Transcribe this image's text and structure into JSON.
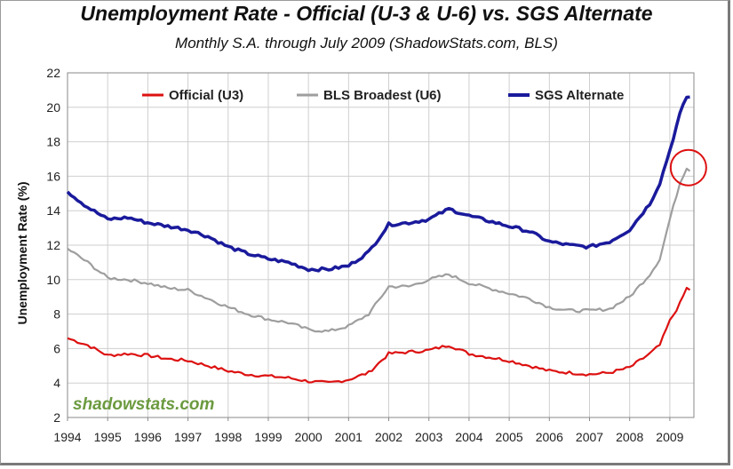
{
  "chart_data": {
    "type": "line",
    "title": "Unemployment Rate - Official (U-3 & U-6) vs. SGS Alternate",
    "subtitle": "Monthly S.A. through July 2009 (ShadowStats.com, BLS)",
    "ylabel": "Unemployment Rate (%)",
    "xlabel": "",
    "xlim": [
      1994,
      2009.6
    ],
    "ylim": [
      2,
      22
    ],
    "yticks": [
      "2",
      "4",
      "6",
      "8",
      "10",
      "12",
      "14",
      "16",
      "18",
      "20",
      "22"
    ],
    "xticks": [
      "1994",
      "1995",
      "1996",
      "1997",
      "1998",
      "1999",
      "2000",
      "2001",
      "2002",
      "2003",
      "2004",
      "2005",
      "2006",
      "2007",
      "2008",
      "2009"
    ],
    "grid": true,
    "legend_position": "top",
    "watermark": "shadowstats.com",
    "annotation": "red circle around latest U6 value",
    "series": [
      {
        "name": "Official (U3)",
        "color": "#dd1111",
        "points": [
          [
            1994.0,
            6.6
          ],
          [
            1994.5,
            6.2
          ],
          [
            1995.0,
            5.6
          ],
          [
            1995.5,
            5.7
          ],
          [
            1996.0,
            5.6
          ],
          [
            1996.5,
            5.4
          ],
          [
            1997.0,
            5.3
          ],
          [
            1997.5,
            5.0
          ],
          [
            1998.0,
            4.7
          ],
          [
            1998.5,
            4.5
          ],
          [
            1999.0,
            4.4
          ],
          [
            1999.5,
            4.3
          ],
          [
            2000.0,
            4.1
          ],
          [
            2000.5,
            4.0
          ],
          [
            2001.0,
            4.2
          ],
          [
            2001.5,
            4.6
          ],
          [
            2002.0,
            5.7
          ],
          [
            2002.5,
            5.8
          ],
          [
            2003.0,
            5.9
          ],
          [
            2003.5,
            6.2
          ],
          [
            2004.0,
            5.7
          ],
          [
            2004.5,
            5.5
          ],
          [
            2005.0,
            5.3
          ],
          [
            2005.5,
            5.0
          ],
          [
            2006.0,
            4.7
          ],
          [
            2006.5,
            4.6
          ],
          [
            2007.0,
            4.5
          ],
          [
            2007.5,
            4.6
          ],
          [
            2008.0,
            4.9
          ],
          [
            2008.5,
            5.7
          ],
          [
            2008.75,
            6.2
          ],
          [
            2009.0,
            7.6
          ],
          [
            2009.25,
            8.6
          ],
          [
            2009.42,
            9.5
          ],
          [
            2009.5,
            9.4
          ]
        ]
      },
      {
        "name": "BLS Broadest (U6)",
        "color": "#9e9e9e",
        "points": [
          [
            1994.0,
            11.8
          ],
          [
            1994.5,
            11.0
          ],
          [
            1995.0,
            10.1
          ],
          [
            1995.5,
            10.0
          ],
          [
            1996.0,
            9.8
          ],
          [
            1996.5,
            9.5
          ],
          [
            1997.0,
            9.4
          ],
          [
            1997.5,
            8.9
          ],
          [
            1998.0,
            8.4
          ],
          [
            1998.5,
            8.0
          ],
          [
            1999.0,
            7.7
          ],
          [
            1999.5,
            7.5
          ],
          [
            2000.0,
            7.1
          ],
          [
            2000.5,
            7.0
          ],
          [
            2001.0,
            7.3
          ],
          [
            2001.5,
            8.0
          ],
          [
            2002.0,
            9.6
          ],
          [
            2002.5,
            9.6
          ],
          [
            2003.0,
            10.0
          ],
          [
            2003.5,
            10.3
          ],
          [
            2004.0,
            9.8
          ],
          [
            2004.5,
            9.5
          ],
          [
            2005.0,
            9.2
          ],
          [
            2005.5,
            8.9
          ],
          [
            2006.0,
            8.4
          ],
          [
            2006.5,
            8.2
          ],
          [
            2007.0,
            8.2
          ],
          [
            2007.5,
            8.3
          ],
          [
            2008.0,
            9.0
          ],
          [
            2008.5,
            10.3
          ],
          [
            2008.75,
            11.2
          ],
          [
            2009.0,
            13.5
          ],
          [
            2009.25,
            15.6
          ],
          [
            2009.42,
            16.5
          ],
          [
            2009.5,
            16.3
          ]
        ]
      },
      {
        "name": "SGS Alternate",
        "color": "#1a1a9c",
        "points": [
          [
            1994.0,
            15.1
          ],
          [
            1994.5,
            14.2
          ],
          [
            1995.0,
            13.5
          ],
          [
            1995.5,
            13.6
          ],
          [
            1996.0,
            13.3
          ],
          [
            1996.5,
            13.1
          ],
          [
            1997.0,
            12.9
          ],
          [
            1997.5,
            12.5
          ],
          [
            1998.0,
            11.9
          ],
          [
            1998.5,
            11.5
          ],
          [
            1999.0,
            11.2
          ],
          [
            1999.5,
            11.0
          ],
          [
            2000.0,
            10.6
          ],
          [
            2000.5,
            10.6
          ],
          [
            2001.0,
            10.8
          ],
          [
            2001.5,
            11.6
          ],
          [
            2002.0,
            13.2
          ],
          [
            2002.5,
            13.3
          ],
          [
            2003.0,
            13.5
          ],
          [
            2003.5,
            14.1
          ],
          [
            2004.0,
            13.7
          ],
          [
            2004.5,
            13.4
          ],
          [
            2005.0,
            13.1
          ],
          [
            2005.5,
            12.8
          ],
          [
            2006.0,
            12.2
          ],
          [
            2006.5,
            12.0
          ],
          [
            2007.0,
            11.9
          ],
          [
            2007.5,
            12.2
          ],
          [
            2008.0,
            12.9
          ],
          [
            2008.5,
            14.4
          ],
          [
            2008.75,
            15.6
          ],
          [
            2009.0,
            17.5
          ],
          [
            2009.25,
            19.6
          ],
          [
            2009.42,
            20.6
          ],
          [
            2009.5,
            20.6
          ]
        ]
      }
    ]
  }
}
